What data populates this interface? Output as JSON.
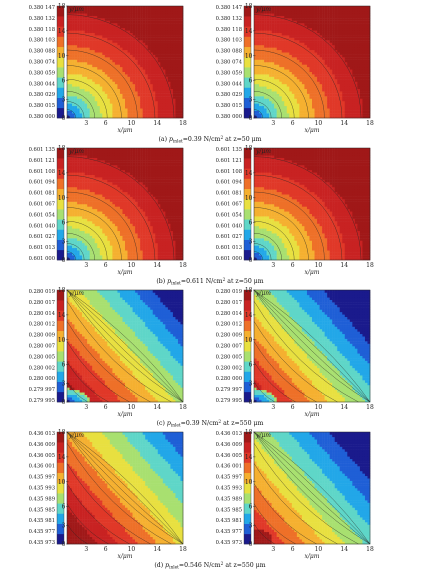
{
  "figure": {
    "panels": [
      {
        "caption": "(a) p_inlet=0.39 N/cm² at z=50 μm",
        "caption_parts": {
          "prefix": "(a) ",
          "p": "p",
          "sub": "inlet",
          "rest": "=0.39 N/cm",
          "sup": "2",
          "tail": " at z=50 μm"
        },
        "colorbar_labels": [
          "0.380 147",
          "0.380 132",
          "0.380 118",
          "0.380 103",
          "0.380 088",
          "0.380 074",
          "0.380 059",
          "0.380 044",
          "0.380 029",
          "0.380 015",
          "0.380 000"
        ],
        "pattern": "a"
      },
      {
        "caption": "(b) p_inlet=0.611 N/cm² at z=50 μm",
        "caption_parts": {
          "prefix": "(b) ",
          "p": "p",
          "sub": "inlet",
          "rest": "=0.611 N/cm",
          "sup": "2",
          "tail": " at z=50 μm"
        },
        "colorbar_labels": [
          "0.601 135",
          "0.601 121",
          "0.601 108",
          "0.601 094",
          "0.601 081",
          "0.601 067",
          "0.601 054",
          "0.601 040",
          "0.601 027",
          "0.601 013",
          "0.601 000"
        ],
        "pattern": "a"
      },
      {
        "caption": "(c) p_inlet=0.39 N/cm² at z=550 μm",
        "caption_parts": {
          "prefix": "(c) ",
          "p": "p",
          "sub": "inlet",
          "rest": "=0.39 N/cm",
          "sup": "2",
          "tail": " at z=550 μm"
        },
        "colorbar_labels": [
          "0.280 019",
          "0.280 017",
          "0.280 014",
          "0.280 012",
          "0.280 009",
          "0.280 007",
          "0.280 005",
          "0.280 002",
          "0.280 000",
          "0.279 997",
          "0.279 995"
        ],
        "pattern": "c"
      },
      {
        "caption": "(d) p_inlet=0.546 N/cm² at z=550 μm",
        "caption_parts": {
          "prefix": "(d) ",
          "p": "p",
          "sub": "inlet",
          "rest": "=0.546 N/cm",
          "sup": "2",
          "tail": " at z=550 μm"
        },
        "colorbar_labels": [
          "0.436 013",
          "0.436 009",
          "0.436 005",
          "0.436 001",
          "0.435 997",
          "0.435 993",
          "0.435 989",
          "0.435 985",
          "0.435 981",
          "0.435 977",
          "0.435 973"
        ],
        "pattern": "d"
      }
    ],
    "y_axis_label": "y/μm",
    "x_axis_label": "x/μm",
    "y_ticks": [
      "18",
      "14",
      "10",
      "6",
      "3",
      "0"
    ],
    "x_ticks": [
      "3",
      "6",
      "10",
      "14",
      "18"
    ],
    "colormap": [
      "#1a1a8c",
      "#1f5fd6",
      "#22a7e8",
      "#5fd6c8",
      "#a8e070",
      "#e8e040",
      "#f5b030",
      "#ee7028",
      "#e03828",
      "#c82222",
      "#a01818"
    ]
  }
}
